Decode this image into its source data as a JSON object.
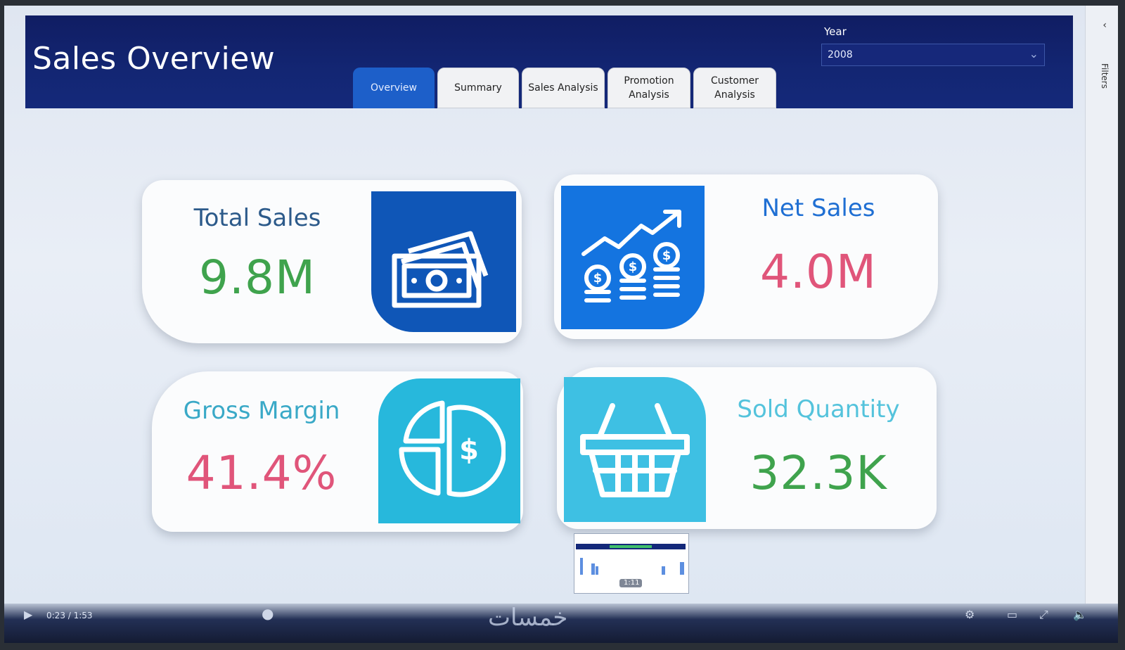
{
  "header": {
    "title": "Sales Overview",
    "tabs": [
      {
        "label": "Overview",
        "active": true
      },
      {
        "label": "Summary",
        "active": false
      },
      {
        "label": "Sales Analysis",
        "active": false
      },
      {
        "label": "Promotion Analysis",
        "active": false
      },
      {
        "label": "Customer Analysis",
        "active": false
      }
    ],
    "year_filter": {
      "label": "Year",
      "value": "2008"
    }
  },
  "side_panel": {
    "label": "Filters"
  },
  "kpis": [
    {
      "title": "Total Sales",
      "value": "9.8M",
      "value_color": "#3fa34d",
      "title_color": "#2c5a8a",
      "icon": "money-icon",
      "tile_color": "#0f56b7"
    },
    {
      "title": "Net Sales",
      "value": "4.0M",
      "value_color": "#e0557a",
      "title_color": "#1f6fd3",
      "icon": "growth-coins-icon",
      "tile_color": "#1474e0"
    },
    {
      "title": "Gross Margin",
      "value": "41.4%",
      "value_color": "#e0557a",
      "title_color": "#3aa9c7",
      "icon": "pie-dollar-icon",
      "tile_color": "#27b8dc"
    },
    {
      "title": "Sold Quantity",
      "value": "32.3K",
      "value_color": "#3fa34d",
      "title_color": "#54c3dc",
      "icon": "basket-icon",
      "tile_color": "#3ec0e3"
    }
  ],
  "player": {
    "time": "0:23 / 1:53",
    "preview_time": "1:11",
    "watermark": "خمسات"
  }
}
